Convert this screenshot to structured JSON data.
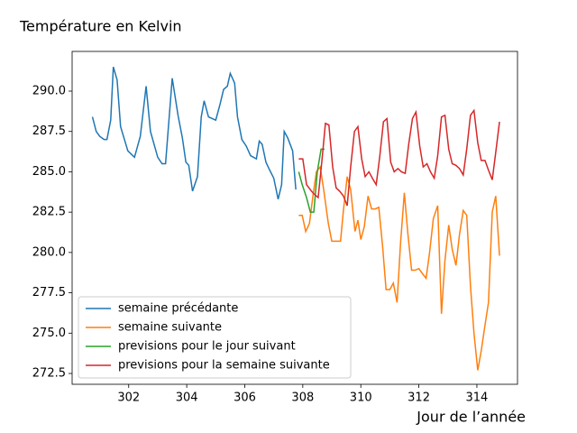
{
  "chart_data": {
    "type": "line",
    "title": "Température en Kelvin",
    "xlabel": "Jour de l’année",
    "xlim": [
      300.05,
      315.4
    ],
    "ylim": [
      271.83,
      292.46
    ],
    "xticks": [
      302,
      304,
      306,
      308,
      310,
      312,
      314
    ],
    "yticks": [
      {
        "value": 272.5,
        "label": "272.5"
      },
      {
        "value": 275,
        "label": "275.0"
      },
      {
        "value": 277.5,
        "label": "277.5"
      },
      {
        "value": 280,
        "label": "280.0"
      },
      {
        "value": 282.5,
        "label": "282.5"
      },
      {
        "value": 285,
        "label": "285.0"
      },
      {
        "value": 287.5,
        "label": "287.5"
      },
      {
        "value": 290,
        "label": "290.0"
      }
    ],
    "legend": "lower left",
    "series": [
      {
        "name": "semaine précédante",
        "color": "#1f77b4",
        "x": [
          300.75,
          300.88,
          301.0,
          301.15,
          301.25,
          301.38,
          301.47,
          301.6,
          301.72,
          301.97,
          302.2,
          302.4,
          302.6,
          302.75,
          303.0,
          303.15,
          303.27,
          303.5,
          303.7,
          303.85,
          303.97,
          304.07,
          304.2,
          304.37,
          304.5,
          304.6,
          304.75,
          305.0,
          305.15,
          305.27,
          305.4,
          305.5,
          305.65,
          305.75,
          305.9,
          306.05,
          306.2,
          306.3,
          306.4,
          306.5,
          306.6,
          306.73,
          306.86,
          307.0,
          307.15,
          307.27,
          307.36,
          307.48,
          307.65,
          307.76
        ],
        "values": [
          288.4,
          287.5,
          287.2,
          287.0,
          287.0,
          288.2,
          291.5,
          290.7,
          287.8,
          286.3,
          285.9,
          287.2,
          290.3,
          287.5,
          285.9,
          285.5,
          285.5,
          290.8,
          288.5,
          287.1,
          285.6,
          285.4,
          283.8,
          284.7,
          288.4,
          289.4,
          288.4,
          288.2,
          289.2,
          290.1,
          290.3,
          291.1,
          290.5,
          288.4,
          287.0,
          286.6,
          286.0,
          285.9,
          285.8,
          286.9,
          286.7,
          285.6,
          285.1,
          284.6,
          283.3,
          284.2,
          287.5,
          287.1,
          286.3,
          283.9
        ]
      },
      {
        "name": "semaine suivante",
        "color": "#ff7f0e",
        "x": [
          307.86,
          307.98,
          308.1,
          308.23,
          308.35,
          308.47,
          308.6,
          308.72,
          308.88,
          309.0,
          309.13,
          309.3,
          309.4,
          309.53,
          309.65,
          309.8,
          309.9,
          310.0,
          310.12,
          310.25,
          310.37,
          310.5,
          310.62,
          310.75,
          310.87,
          311.0,
          311.12,
          311.25,
          311.37,
          311.5,
          311.62,
          311.75,
          311.87,
          312.0,
          312.12,
          312.25,
          312.37,
          312.5,
          312.65,
          312.78,
          312.9,
          313.03,
          313.15,
          313.28,
          313.4,
          313.53,
          313.65,
          313.78,
          313.9,
          314.03,
          314.15,
          314.28,
          314.4,
          314.53,
          314.65,
          314.78
        ],
        "values": [
          282.3,
          282.3,
          281.3,
          281.8,
          283.5,
          285.0,
          285.3,
          283.9,
          281.8,
          280.7,
          280.7,
          280.7,
          282.6,
          284.7,
          283.9,
          281.3,
          282.0,
          280.8,
          281.6,
          283.5,
          282.7,
          282.7,
          282.8,
          280.4,
          277.7,
          277.7,
          278.1,
          276.9,
          280.6,
          283.7,
          281.2,
          278.9,
          278.9,
          279.0,
          278.7,
          278.4,
          280.0,
          282.1,
          282.9,
          276.2,
          279.5,
          281.7,
          280.2,
          279.2,
          281.1,
          282.6,
          282.3,
          277.9,
          275.0,
          272.7,
          273.9,
          275.5,
          276.9,
          282.5,
          283.5,
          279.8
        ]
      },
      {
        "name": "previsions pour le jour suivant",
        "color": "#2ca02c",
        "x": [
          307.86,
          307.98,
          308.13,
          308.26,
          308.38,
          308.5,
          308.63,
          308.75
        ],
        "values": [
          285.0,
          284.2,
          283.4,
          282.5,
          282.5,
          285.0,
          286.4,
          286.4
        ]
      },
      {
        "name": "previsions pour la semaine suivante",
        "color": "#d62728",
        "x": [
          307.86,
          308.0,
          308.13,
          308.3,
          308.4,
          308.53,
          308.66,
          308.78,
          308.9,
          309.03,
          309.15,
          309.27,
          309.4,
          309.53,
          309.65,
          309.78,
          309.9,
          310.03,
          310.15,
          310.28,
          310.4,
          310.53,
          310.65,
          310.78,
          310.9,
          311.03,
          311.15,
          311.28,
          311.4,
          311.53,
          311.65,
          311.78,
          311.9,
          312.03,
          312.15,
          312.28,
          312.4,
          312.53,
          312.65,
          312.78,
          312.9,
          313.03,
          313.15,
          313.28,
          313.4,
          313.53,
          313.65,
          313.78,
          313.9,
          314.03,
          314.15,
          314.28,
          314.4,
          314.53,
          314.65,
          314.78
        ],
        "values": [
          285.8,
          285.8,
          284.2,
          283.8,
          283.6,
          283.4,
          285.7,
          288.0,
          287.9,
          285.3,
          284.0,
          283.8,
          283.5,
          282.9,
          285.3,
          287.5,
          287.8,
          285.8,
          284.7,
          285.0,
          284.6,
          284.2,
          285.9,
          288.1,
          288.3,
          285.6,
          285.0,
          285.2,
          285.0,
          284.9,
          286.7,
          288.3,
          288.7,
          286.6,
          285.3,
          285.5,
          285.0,
          284.6,
          286.0,
          288.4,
          288.5,
          286.4,
          285.5,
          285.4,
          285.2,
          284.8,
          286.4,
          288.5,
          288.8,
          286.8,
          285.7,
          285.7,
          285.1,
          284.5,
          286.2,
          288.1
        ]
      }
    ]
  }
}
